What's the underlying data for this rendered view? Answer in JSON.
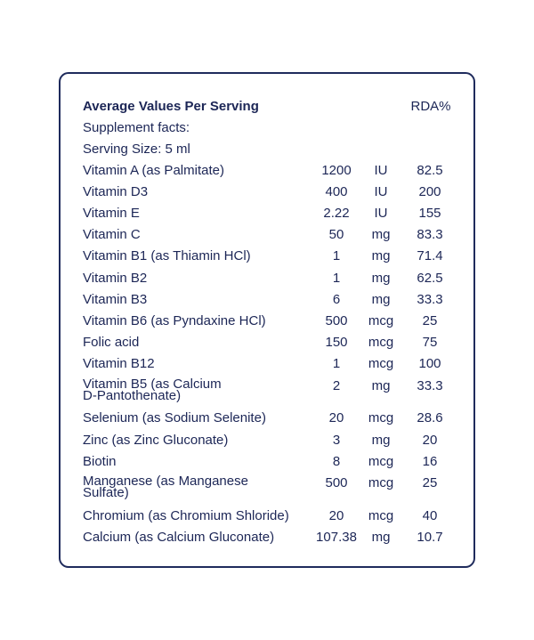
{
  "header": {
    "title": "Average Values Per Serving",
    "rda_label": "RDA%"
  },
  "subtitle": "Supplement facts:",
  "serving_size": "Serving Size: 5 ml",
  "rows": [
    {
      "name": "Vitamin A (as Palmitate)",
      "value": "1200",
      "unit": "IU",
      "rda": "82.5"
    },
    {
      "name": "Vitamin D3",
      "value": "400",
      "unit": "IU",
      "rda": "200"
    },
    {
      "name": "Vitamin E",
      "value": "2.22",
      "unit": "IU",
      "rda": "155"
    },
    {
      "name": "Vitamin C",
      "value": "50",
      "unit": "mg",
      "rda": "83.3"
    },
    {
      "name": "Vitamin B1  (as Thiamin HCl)",
      "value": "1",
      "unit": "mg",
      "rda": "71.4"
    },
    {
      "name": "Vitamin B2",
      "value": "1",
      "unit": "mg",
      "rda": "62.5"
    },
    {
      "name": "Vitamin B3",
      "value": "6",
      "unit": "mg",
      "rda": "33.3"
    },
    {
      "name": "Vitamin B6 (as Pyndaxine HCl)",
      "value": "500",
      "unit": "mcg",
      "rda": "25"
    },
    {
      "name": "Folic acid",
      "value": "150",
      "unit": "mcg",
      "rda": "75"
    },
    {
      "name": "Vitamin B12",
      "value": "1",
      "unit": "mcg",
      "rda": "100"
    },
    {
      "name": "Vitamin B5 (as Calcium D-Pantothenate)",
      "value": "2",
      "unit": "mg",
      "rda": "33.3"
    },
    {
      "name": "Selenium (as Sodium Selenite)",
      "value": "20",
      "unit": "mcg",
      "rda": "28.6"
    },
    {
      "name": "Zinc (as Zinc Gluconate)",
      "value": "3",
      "unit": "mg",
      "rda": "20"
    },
    {
      "name": "Biotin",
      "value": "8",
      "unit": "mcg",
      "rda": "16"
    },
    {
      "name": "Manganese (as Manganese Sulfate)",
      "value": "500",
      "unit": "mcg",
      "rda": "25"
    },
    {
      "name": "Chromium (as Chromium Shloride)",
      "value": "20",
      "unit": "mcg",
      "rda": "40"
    },
    {
      "name": "Calcium (as Calcium Gluconate)",
      "value": "107.38",
      "unit": "mg",
      "rda": "10.7"
    }
  ]
}
